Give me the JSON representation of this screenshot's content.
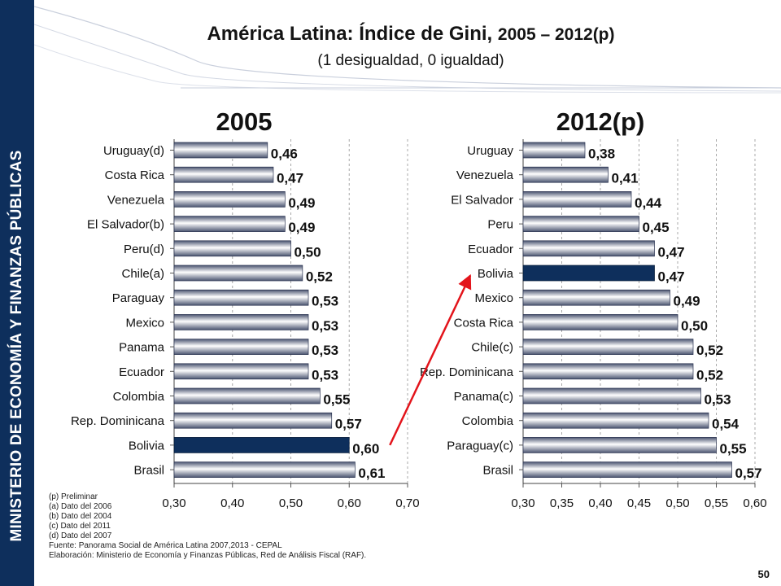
{
  "sidebar": {
    "text": "MINISTERIO DE ECONOMÍA Y FINANZAS PÚBLICAS"
  },
  "header": {
    "title_main": "América Latina:  Índice de Gini,",
    "title_years": "2005 – 2012(p)",
    "subtitle": "(1 desigualdad,  0 igualdad)"
  },
  "chart_data": [
    {
      "type": "bar",
      "orientation": "horizontal",
      "title": "2005",
      "categories": [
        "Uruguay(d)",
        "Costa Rica",
        "Venezuela",
        "El Salvador(b)",
        "Peru(d)",
        "Chile(a)",
        "Paraguay",
        "Mexico",
        "Panama",
        "Ecuador",
        "Colombia",
        "Rep. Dominicana",
        "Bolivia",
        "Brasil"
      ],
      "values": [
        0.46,
        0.47,
        0.49,
        0.49,
        0.5,
        0.52,
        0.53,
        0.53,
        0.53,
        0.53,
        0.55,
        0.57,
        0.6,
        0.61
      ],
      "value_labels": [
        "0,46",
        "0,47",
        "0,49",
        "0,49",
        "0,50",
        "0,52",
        "0,53",
        "0,53",
        "0,53",
        "0,53",
        "0,55",
        "0,57",
        "0,60",
        "0,61"
      ],
      "highlight": "Bolivia",
      "xlim": [
        0.3,
        0.7
      ],
      "xticks": [
        "0,30",
        "0,40",
        "0,50",
        "0,60",
        "0,70"
      ],
      "grid": "vertical dashed"
    },
    {
      "type": "bar",
      "orientation": "horizontal",
      "title": "2012(p)",
      "categories": [
        "Uruguay",
        "Venezuela",
        "El Salvador",
        "Peru",
        "Ecuador",
        "Bolivia",
        "Mexico",
        "Costa Rica",
        "Chile(c)",
        "Rep. Dominicana",
        "Panama(c)",
        "Colombia",
        "Paraguay(c)",
        "Brasil"
      ],
      "values": [
        0.38,
        0.41,
        0.44,
        0.45,
        0.47,
        0.47,
        0.49,
        0.5,
        0.52,
        0.52,
        0.53,
        0.54,
        0.55,
        0.57
      ],
      "value_labels": [
        "0,38",
        "0,41",
        "0,44",
        "0,45",
        "0,47",
        "0,47",
        "0,49",
        "0,50",
        "0,52",
        "0,52",
        "0,53",
        "0,54",
        "0,55",
        "0,57"
      ],
      "highlight": "Bolivia",
      "xlim": [
        0.3,
        0.6
      ],
      "xticks": [
        "0,30",
        "0,35",
        "0,40",
        "0,45",
        "0,50",
        "0,55",
        "0,60"
      ],
      "grid": "vertical dashed"
    }
  ],
  "annotation": {
    "arrow": "Bolivia 2005 to Bolivia 2012(p)",
    "color": "#e3141b"
  },
  "colors": {
    "bar_light": "#ffffff",
    "bar_dark": "#4a5470",
    "highlight": "#0e2f5c",
    "sidebar": "#0e2f5c"
  },
  "footnotes": [
    "(p) Preliminar",
    "(a) Dato del 2006",
    "(b) Dato del 2004",
    "(c) Dato del 2011",
    "(d) Dato del 2007",
    "Fuente: Panorama Social de América Latina 2007,2013 - CEPAL",
    "Elaboración: Ministerio de Economía y Finanzas Públicas, Red de Análisis Fiscal (RAF)."
  ],
  "page_number": "50"
}
